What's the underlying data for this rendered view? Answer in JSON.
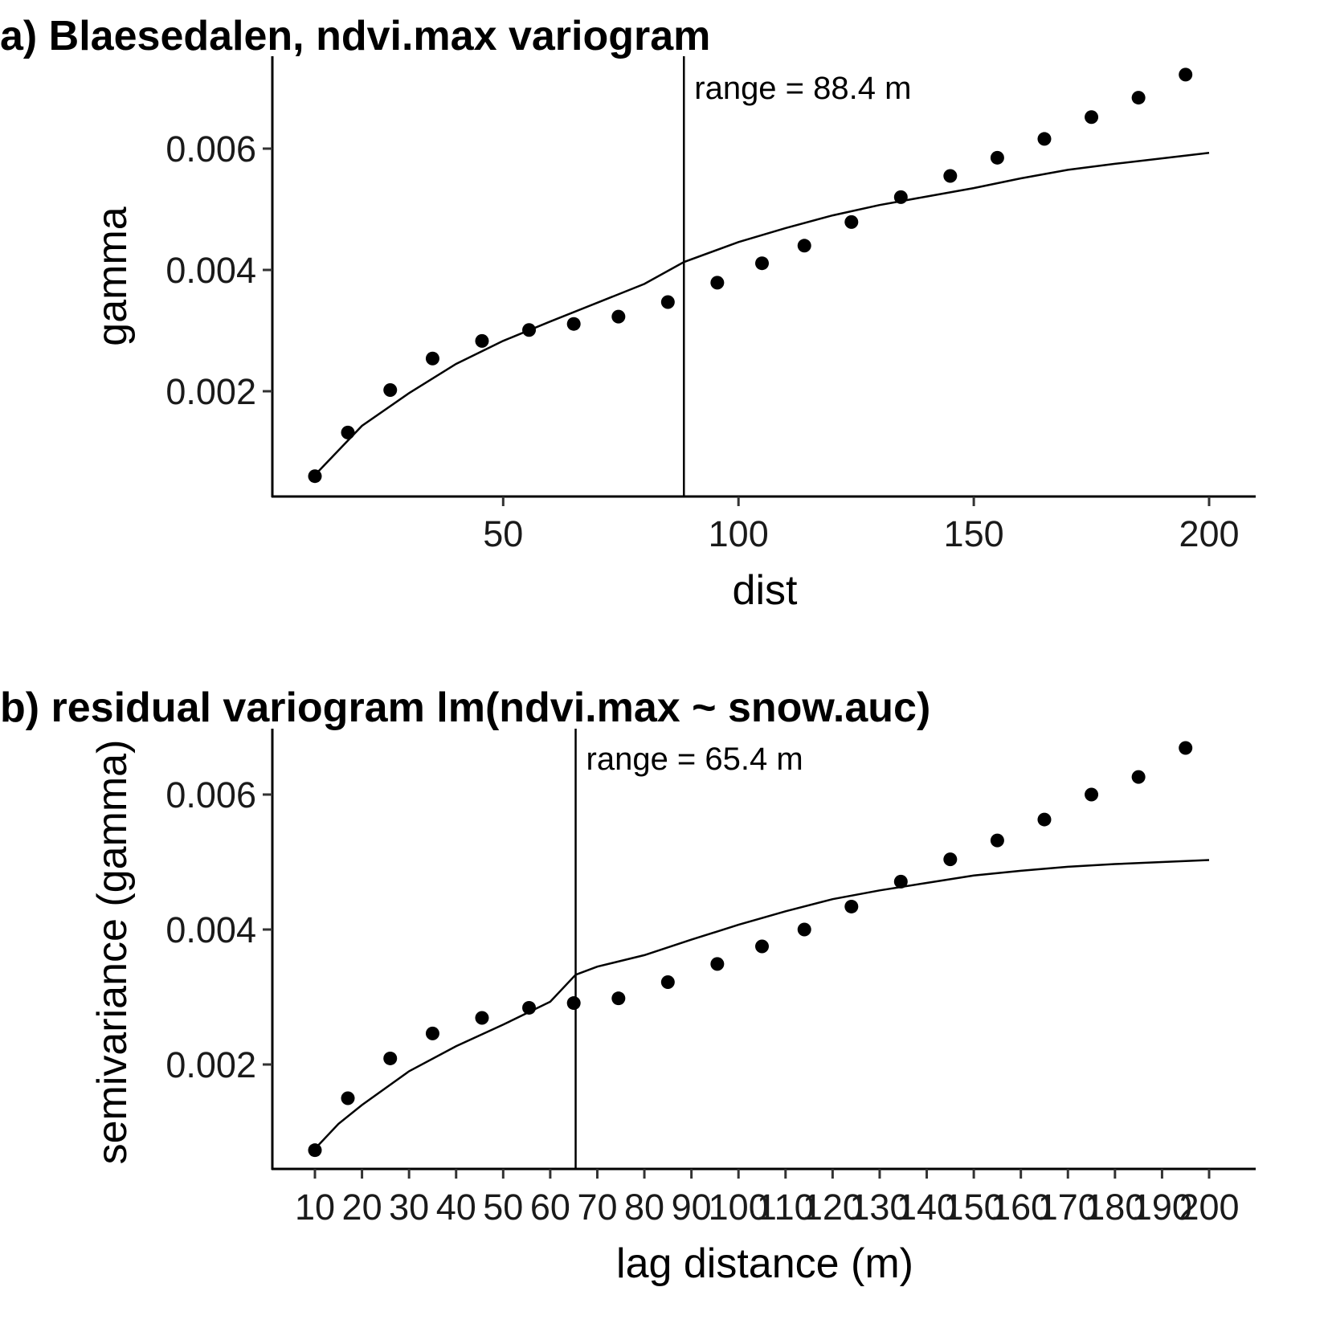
{
  "chart_data": [
    {
      "type": "scatter",
      "title": "a) Blaesedalen, ndvi.max variogram",
      "xlabel": "dist",
      "ylabel": "gamma",
      "xlim": [
        0,
        210
      ],
      "ylim": [
        0,
        0.0072
      ],
      "x_ticks": [
        "50",
        "100",
        "150",
        "200"
      ],
      "x_tick_values": [
        50,
        100,
        150,
        200
      ],
      "y_ticks": [
        "0.002",
        "0.004",
        "0.006"
      ],
      "y_tick_values": [
        0.002,
        0.004,
        0.006
      ],
      "grid": false,
      "series": [
        {
          "kind": "points",
          "x": [
            10,
            17,
            26,
            35,
            45.5,
            55.5,
            65,
            74.5,
            85,
            95.5,
            105,
            114,
            124,
            134.5,
            145,
            155,
            165,
            175,
            185,
            195
          ],
          "y": [
            0.0006,
            0.00132,
            0.00202,
            0.00254,
            0.00283,
            0.00301,
            0.00311,
            0.00323,
            0.00347,
            0.00379,
            0.00411,
            0.0044,
            0.00479,
            0.0052,
            0.00555,
            0.00585,
            0.00616,
            0.00652,
            0.00684,
            0.00722
          ]
        },
        {
          "kind": "line",
          "x": [
            10,
            20,
            30,
            40,
            50,
            60,
            70,
            80,
            88.4,
            100,
            110,
            120,
            130,
            140,
            150,
            160,
            170,
            180,
            190,
            200
          ],
          "y": [
            0.00062,
            0.00143,
            0.00197,
            0.00245,
            0.00283,
            0.00315,
            0.00346,
            0.00377,
            0.00413,
            0.00446,
            0.00469,
            0.0049,
            0.00507,
            0.00521,
            0.00535,
            0.00551,
            0.00565,
            0.00575,
            0.00584,
            0.00593
          ]
        }
      ],
      "vline": {
        "x": 88.4,
        "label": "range = 88.4 m"
      }
    },
    {
      "type": "scatter",
      "title": "b) residual variogram lm(ndvi.max ~ snow.auc)",
      "xlabel": "lag distance (m)",
      "ylabel": "semivariance (gamma)",
      "xlim": [
        0,
        210
      ],
      "ylim": [
        0,
        0.007
      ],
      "x_ticks": [
        "10",
        "20",
        "30",
        "40",
        "50",
        "60",
        "70",
        "80",
        "90",
        "100",
        "110",
        "120",
        "130",
        "140",
        "150",
        "160",
        "170",
        "180",
        "190",
        "200"
      ],
      "x_tick_values": [
        10,
        20,
        30,
        40,
        50,
        60,
        70,
        80,
        90,
        100,
        110,
        120,
        130,
        140,
        150,
        160,
        170,
        180,
        190,
        200
      ],
      "y_ticks": [
        "0.002",
        "0.004",
        "0.006"
      ],
      "y_tick_values": [
        0.002,
        0.004,
        0.006
      ],
      "grid": false,
      "series": [
        {
          "kind": "points",
          "x": [
            10,
            17,
            26,
            35,
            45.5,
            55.5,
            65,
            74.5,
            85,
            95.5,
            105,
            114,
            124,
            134.5,
            145,
            155,
            165,
            175,
            185,
            195
          ],
          "y": [
            0.00073,
            0.0015,
            0.00209,
            0.00246,
            0.00269,
            0.00284,
            0.00291,
            0.00298,
            0.00322,
            0.00349,
            0.00375,
            0.004,
            0.00434,
            0.00471,
            0.00504,
            0.00532,
            0.00563,
            0.006,
            0.00626,
            0.00669
          ]
        },
        {
          "kind": "line",
          "x": [
            10,
            15,
            20,
            30,
            40,
            50,
            60,
            65.4,
            70,
            80,
            90,
            100,
            110,
            120,
            130,
            140,
            150,
            160,
            170,
            180,
            190,
            200
          ],
          "y": [
            0.00075,
            0.00112,
            0.0014,
            0.0019,
            0.00227,
            0.00259,
            0.00293,
            0.00333,
            0.00345,
            0.00362,
            0.00385,
            0.00407,
            0.00427,
            0.00445,
            0.00458,
            0.00469,
            0.0048,
            0.00487,
            0.00493,
            0.00497,
            0.005,
            0.00503
          ]
        }
      ],
      "vline": {
        "x": 65.4,
        "label": "range = 65.4 m"
      }
    }
  ]
}
